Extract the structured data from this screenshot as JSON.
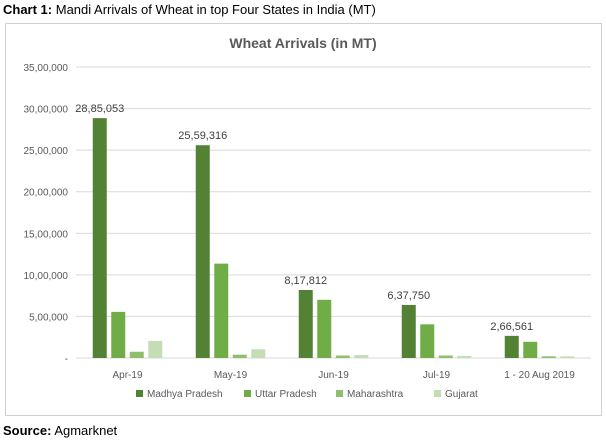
{
  "caption": {
    "label": "Chart 1:",
    "text": "Mandi Arrivals of Wheat in top Four States in India (MT)"
  },
  "source": {
    "label": "Source:",
    "text": "Agmarknet"
  },
  "colors": {
    "Madhya Pradesh": "#548235",
    "Uttar Pradesh": "#70ad47",
    "Maharashtra": "#8fbf6c",
    "Gujarat": "#c5ddb5",
    "gridline": "#d9d9d9",
    "text": "#595959"
  },
  "chart_data": {
    "type": "bar",
    "title": "Wheat Arrivals (in MT)",
    "xlabel": "",
    "ylabel": "",
    "ylim": [
      0,
      3500000
    ],
    "yticks": [
      0,
      500000,
      1000000,
      1500000,
      2000000,
      2500000,
      3000000,
      3500000
    ],
    "ytick_labels": [
      "-",
      "5,00,000",
      "10,00,000",
      "15,00,000",
      "20,00,000",
      "25,00,000",
      "30,00,000",
      "35,00,000"
    ],
    "grid": true,
    "legend_position": "bottom",
    "categories": [
      "Apr-19",
      "May-19",
      "Jun-19",
      "Jul-19",
      "1 - 20 Aug 2019"
    ],
    "series": [
      {
        "name": "Madhya Pradesh",
        "values": [
          2885053,
          2559316,
          817812,
          637750,
          266561
        ],
        "data_labels": [
          "28,85,053",
          "25,59,316",
          "8,17,812",
          "6,37,750",
          "2,66,561"
        ]
      },
      {
        "name": "Uttar Pradesh",
        "values": [
          555000,
          1135000,
          700000,
          405000,
          195000
        ]
      },
      {
        "name": "Maharashtra",
        "values": [
          75000,
          40000,
          30000,
          30000,
          20000
        ]
      },
      {
        "name": "Gujarat",
        "values": [
          205000,
          105000,
          35000,
          25000,
          20000
        ]
      }
    ]
  }
}
